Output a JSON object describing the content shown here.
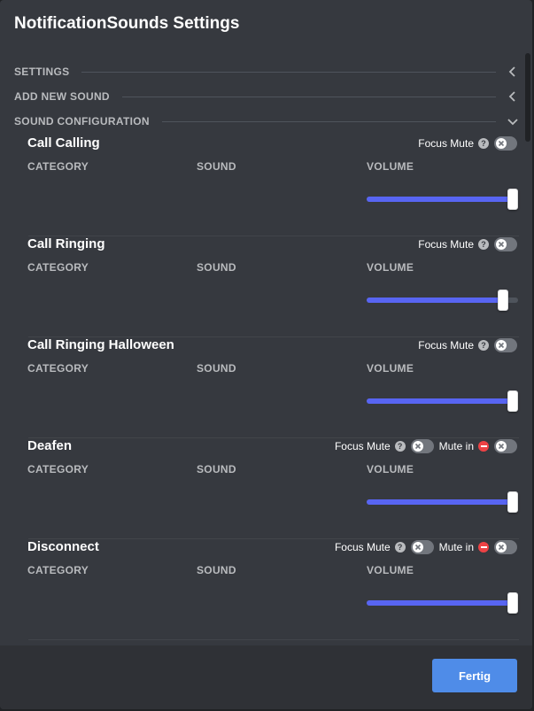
{
  "title": "NotificationSounds Settings",
  "sections": {
    "settings": "SETTINGS",
    "add_new_sound": "ADD NEW SOUND",
    "sound_configuration": "SOUND CONFIGURATION"
  },
  "columns": {
    "category": "CATEGORY",
    "sound": "SOUND",
    "volume": "VOLUME"
  },
  "labels": {
    "focus_mute": "Focus Mute",
    "mute_in": "Mute in"
  },
  "sounds": [
    {
      "name": "Call Calling",
      "volume": 1.0,
      "focus_mute": false,
      "has_mute_in": false
    },
    {
      "name": "Call Ringing",
      "volume": 0.9,
      "focus_mute": false,
      "has_mute_in": false
    },
    {
      "name": "Call Ringing Halloween",
      "volume": 1.0,
      "focus_mute": false,
      "has_mute_in": false
    },
    {
      "name": "Deafen",
      "volume": 1.0,
      "focus_mute": false,
      "has_mute_in": true,
      "mute_in": false
    },
    {
      "name": "Disconnect",
      "volume": 1.0,
      "focus_mute": false,
      "has_mute_in": true,
      "mute_in": false
    }
  ],
  "footer": {
    "done_label": "Fertig"
  },
  "colors": {
    "accent": "#5865f2",
    "button": "#4f8ce8",
    "danger": "#ed4245"
  }
}
